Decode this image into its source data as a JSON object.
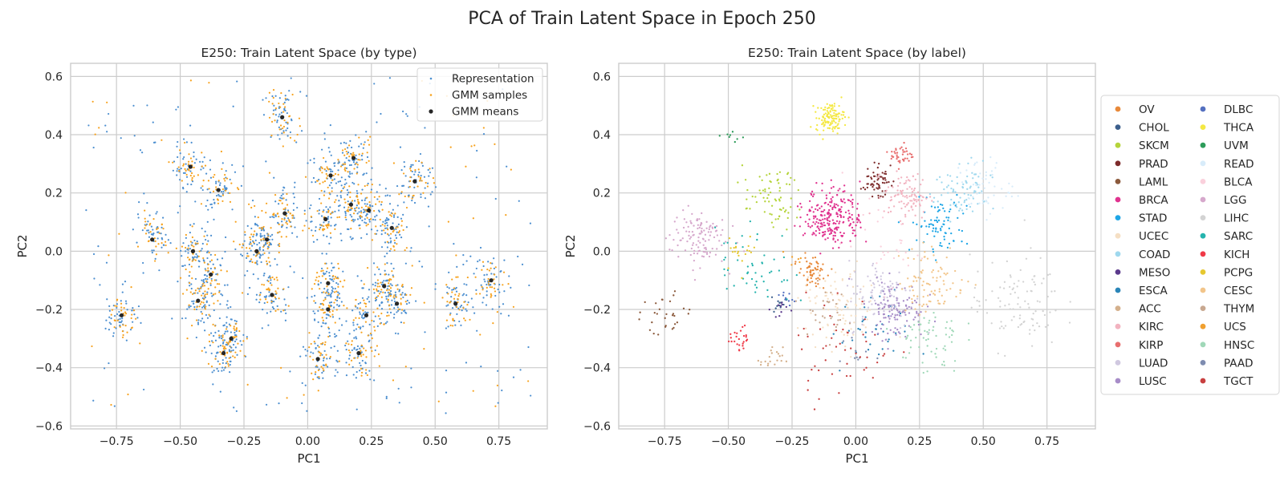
{
  "suptitle": "PCA of Train Latent Space in Epoch 250",
  "chart_data": [
    {
      "type": "scatter",
      "title": "E250: Train Latent Space (by type)",
      "xlabel": "PC1",
      "ylabel": "PC2",
      "xlim": [
        -0.93,
        0.94
      ],
      "ylim": [
        -0.61,
        0.645
      ],
      "xticks": [
        -0.75,
        -0.5,
        -0.25,
        0.0,
        0.25,
        0.5,
        0.75
      ],
      "xtick_labels": [
        "−0.75",
        "−0.50",
        "−0.25",
        "0.00",
        "0.25",
        "0.50",
        "0.75"
      ],
      "yticks": [
        -0.6,
        -0.4,
        -0.2,
        0.0,
        0.2,
        0.4,
        0.6
      ],
      "ytick_labels": [
        "−0.6",
        "−0.4",
        "−0.2",
        "0.0",
        "0.2",
        "0.4",
        "0.6"
      ],
      "grid": true,
      "legend_position": "top-right",
      "series": [
        {
          "name": "Representation",
          "color": "#4c8fd0",
          "marker": "dot"
        },
        {
          "name": "GMM samples",
          "color": "#f7a21d",
          "marker": "dot"
        },
        {
          "name": "GMM means",
          "color": "#262626",
          "marker": "dot-large"
        }
      ],
      "clusters": [
        {
          "x": -0.1,
          "y": 0.46
        },
        {
          "x": 0.09,
          "y": 0.26
        },
        {
          "x": 0.18,
          "y": 0.32
        },
        {
          "x": 0.42,
          "y": 0.24
        },
        {
          "x": -0.09,
          "y": 0.13
        },
        {
          "x": 0.17,
          "y": 0.16
        },
        {
          "x": -0.35,
          "y": 0.21
        },
        {
          "x": -0.46,
          "y": 0.29
        },
        {
          "x": -0.61,
          "y": 0.04
        },
        {
          "x": -0.45,
          "y": 0.0
        },
        {
          "x": -0.38,
          "y": -0.08
        },
        {
          "x": 0.33,
          "y": 0.08
        },
        {
          "x": 0.07,
          "y": 0.11
        },
        {
          "x": -0.14,
          "y": -0.15
        },
        {
          "x": -0.2,
          "y": 0.0
        },
        {
          "x": 0.08,
          "y": -0.2
        },
        {
          "x": 0.23,
          "y": -0.22
        },
        {
          "x": 0.3,
          "y": -0.12
        },
        {
          "x": 0.35,
          "y": -0.18
        },
        {
          "x": 0.58,
          "y": -0.18
        },
        {
          "x": 0.72,
          "y": -0.1
        },
        {
          "x": -0.73,
          "y": -0.22
        },
        {
          "x": -0.33,
          "y": -0.35
        },
        {
          "x": -0.3,
          "y": -0.3
        },
        {
          "x": 0.04,
          "y": -0.37
        },
        {
          "x": 0.2,
          "y": -0.35
        },
        {
          "x": -0.43,
          "y": -0.17
        },
        {
          "x": 0.08,
          "y": -0.11
        },
        {
          "x": -0.16,
          "y": 0.04
        },
        {
          "x": 0.24,
          "y": 0.14
        }
      ],
      "gmm_means": [
        {
          "x": -0.1,
          "y": 0.46
        },
        {
          "x": 0.09,
          "y": 0.26
        },
        {
          "x": 0.18,
          "y": 0.32
        },
        {
          "x": 0.42,
          "y": 0.24
        },
        {
          "x": -0.09,
          "y": 0.13
        },
        {
          "x": 0.17,
          "y": 0.16
        },
        {
          "x": -0.35,
          "y": 0.21
        },
        {
          "x": -0.46,
          "y": 0.29
        },
        {
          "x": -0.61,
          "y": 0.04
        },
        {
          "x": -0.45,
          "y": 0.0
        },
        {
          "x": -0.38,
          "y": -0.08
        },
        {
          "x": 0.33,
          "y": 0.08
        },
        {
          "x": 0.07,
          "y": 0.11
        },
        {
          "x": -0.14,
          "y": -0.15
        },
        {
          "x": -0.2,
          "y": 0.0
        },
        {
          "x": 0.08,
          "y": -0.2
        },
        {
          "x": 0.23,
          "y": -0.22
        },
        {
          "x": 0.3,
          "y": -0.12
        },
        {
          "x": 0.35,
          "y": -0.18
        },
        {
          "x": 0.58,
          "y": -0.18
        },
        {
          "x": 0.72,
          "y": -0.1
        },
        {
          "x": -0.73,
          "y": -0.22
        },
        {
          "x": -0.33,
          "y": -0.35
        },
        {
          "x": -0.3,
          "y": -0.3
        },
        {
          "x": 0.04,
          "y": -0.37
        },
        {
          "x": 0.2,
          "y": -0.35
        },
        {
          "x": -0.43,
          "y": -0.17
        },
        {
          "x": 0.08,
          "y": -0.11
        },
        {
          "x": -0.16,
          "y": 0.04
        },
        {
          "x": 0.24,
          "y": 0.14
        }
      ]
    },
    {
      "type": "scatter",
      "title": "E250: Train Latent Space (by label)",
      "xlabel": "PC1",
      "ylabel": "PC2",
      "xlim": [
        -0.93,
        0.94
      ],
      "ylim": [
        -0.61,
        0.645
      ],
      "xticks": [
        -0.75,
        -0.5,
        -0.25,
        0.0,
        0.25,
        0.5,
        0.75
      ],
      "xtick_labels": [
        "−0.75",
        "−0.50",
        "−0.25",
        "0.00",
        "0.25",
        "0.50",
        "0.75"
      ],
      "yticks": [
        -0.6,
        -0.4,
        -0.2,
        0.0,
        0.2,
        0.4,
        0.6
      ],
      "ytick_labels": [
        "−0.6",
        "−0.4",
        "−0.2",
        "0.0",
        "0.2",
        "0.4",
        "0.6"
      ],
      "grid": true,
      "legend_position": "outside-right",
      "legend_columns": 2,
      "series": [
        {
          "name": "OV",
          "color": "#e8893a",
          "center": [
            -0.17,
            -0.07
          ],
          "spread": 0.025,
          "n": 60
        },
        {
          "name": "CHOL",
          "color": "#3c5f8c",
          "center": [
            -0.3,
            -0.18
          ],
          "spread": 0.02,
          "n": 12
        },
        {
          "name": "SKCM",
          "color": "#b5d43b",
          "center": [
            -0.33,
            0.18
          ],
          "spread": 0.05,
          "n": 70
        },
        {
          "name": "PRAD",
          "color": "#7d2b2b",
          "center": [
            0.08,
            0.24
          ],
          "spread": 0.025,
          "n": 60
        },
        {
          "name": "LAML",
          "color": "#8b5a3c",
          "center": [
            -0.75,
            -0.22
          ],
          "spread": 0.04,
          "n": 30
        },
        {
          "name": "BRCA",
          "color": "#e0338f",
          "center": [
            -0.09,
            0.12
          ],
          "spread": 0.05,
          "n": 240
        },
        {
          "name": "STAD",
          "color": "#1ea6e6",
          "center": [
            0.33,
            0.09
          ],
          "spread": 0.05,
          "n": 80
        },
        {
          "name": "UCEC",
          "color": "#f5dfc4",
          "center": [
            -0.06,
            -0.2
          ],
          "spread": 0.07,
          "n": 90
        },
        {
          "name": "COAD",
          "color": "#9fd8ee",
          "center": [
            0.42,
            0.2
          ],
          "spread": 0.05,
          "n": 80
        },
        {
          "name": "MESO",
          "color": "#5b3a8c",
          "center": [
            -0.3,
            -0.2
          ],
          "spread": 0.015,
          "n": 10
        },
        {
          "name": "ESCA",
          "color": "#2a85b8",
          "center": [
            0.05,
            -0.28
          ],
          "spread": 0.07,
          "n": 40
        },
        {
          "name": "ACC",
          "color": "#d4b08c",
          "center": [
            -0.33,
            -0.37
          ],
          "spread": 0.02,
          "n": 20
        },
        {
          "name": "KIRC",
          "color": "#f2b3c0",
          "center": [
            0.2,
            0.19
          ],
          "spread": 0.04,
          "n": 100
        },
        {
          "name": "KIRP",
          "color": "#e86e6e",
          "center": [
            0.18,
            0.33
          ],
          "spread": 0.02,
          "n": 40
        },
        {
          "name": "LUAD",
          "color": "#d0c8e0",
          "center": [
            0.1,
            -0.15
          ],
          "spread": 0.06,
          "n": 100
        },
        {
          "name": "LUSC",
          "color": "#a78cc8",
          "center": [
            0.16,
            -0.2
          ],
          "spread": 0.05,
          "n": 110
        },
        {
          "name": "DLBC",
          "color": "#5470c0",
          "center": [
            -0.27,
            -0.16
          ],
          "spread": 0.02,
          "n": 10
        },
        {
          "name": "THCA",
          "color": "#f4e843",
          "center": [
            -0.1,
            0.46
          ],
          "spread": 0.025,
          "n": 120
        },
        {
          "name": "UVM",
          "color": "#2e9c5a",
          "center": [
            -0.48,
            0.39
          ],
          "spread": 0.02,
          "n": 8
        },
        {
          "name": "READ",
          "color": "#d8ecfa",
          "center": [
            0.5,
            0.22
          ],
          "spread": 0.05,
          "n": 50
        },
        {
          "name": "BLCA",
          "color": "#fad0dc",
          "center": [
            0.1,
            0.02
          ],
          "spread": 0.07,
          "n": 30
        },
        {
          "name": "LGG",
          "color": "#d6a8cc",
          "center": [
            -0.62,
            0.05
          ],
          "spread": 0.05,
          "n": 120
        },
        {
          "name": "LIHC",
          "color": "#d3d3d3",
          "center": [
            0.63,
            -0.18
          ],
          "spread": 0.08,
          "n": 100
        },
        {
          "name": "SARC",
          "color": "#26b4ae",
          "center": [
            -0.4,
            -0.05
          ],
          "spread": 0.07,
          "n": 50
        },
        {
          "name": "KICH",
          "color": "#f03a48",
          "center": [
            -0.45,
            -0.3
          ],
          "spread": 0.02,
          "n": 25
        },
        {
          "name": "PCPG",
          "color": "#e6c830",
          "center": [
            -0.45,
            0.0
          ],
          "spread": 0.03,
          "n": 20
        },
        {
          "name": "CESC",
          "color": "#f2c58a",
          "center": [
            0.3,
            -0.1
          ],
          "spread": 0.06,
          "n": 90
        },
        {
          "name": "THYM",
          "color": "#c8a890",
          "center": [
            -0.13,
            -0.2
          ],
          "spread": 0.04,
          "n": 30
        },
        {
          "name": "UCS",
          "color": "#f0a030",
          "center": [
            -0.22,
            -0.02
          ],
          "spread": 0.02,
          "n": 6
        },
        {
          "name": "HNSC",
          "color": "#a0d8b8",
          "center": [
            0.28,
            -0.3
          ],
          "spread": 0.06,
          "n": 60
        },
        {
          "name": "PAAD",
          "color": "#7e8cb0",
          "center": [
            0.0,
            -0.35
          ],
          "spread": 0.03,
          "n": 10
        },
        {
          "name": "TGCT",
          "color": "#c84040",
          "center": [
            -0.05,
            -0.33
          ],
          "spread": 0.09,
          "n": 50
        }
      ]
    }
  ]
}
